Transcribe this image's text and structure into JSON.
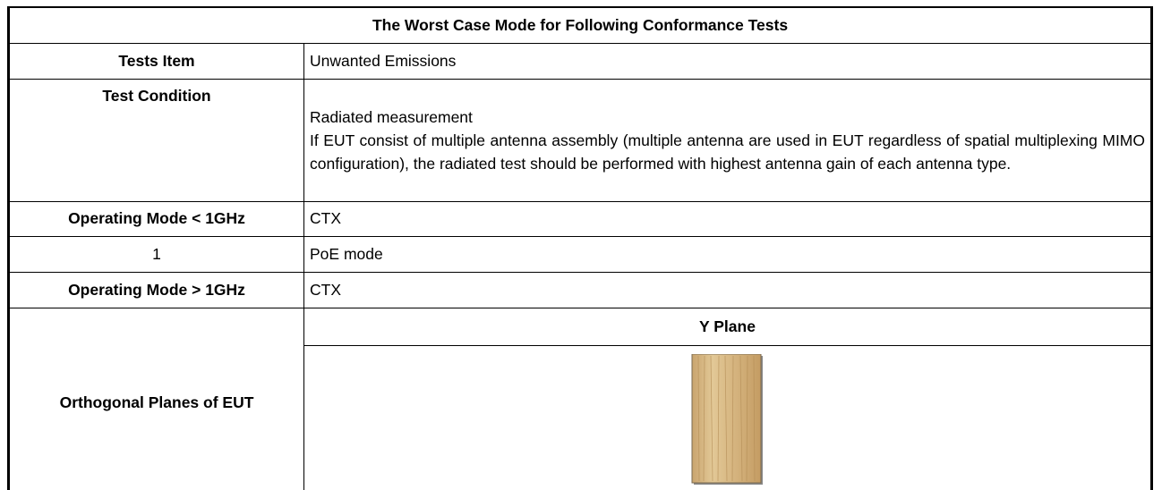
{
  "table": {
    "title": "The Worst Case Mode for Following Conformance Tests",
    "rows": [
      {
        "label": "Tests Item",
        "value": "Unwanted Emissions"
      },
      {
        "label": "Test Condition",
        "value": [
          "Radiated measurement",
          "If EUT consist of multiple antenna assembly (multiple antenna are used in EUT regardless of spatial multiplexing MIMO configuration), the radiated test should be performed with highest antenna gain of each antenna type."
        ]
      },
      {
        "label": "Operating Mode < 1GHz",
        "value": "CTX"
      },
      {
        "label": "1",
        "value": "PoE mode"
      },
      {
        "label": "Operating Mode > 1GHz",
        "value": "CTX"
      }
    ],
    "planes": {
      "label": "Orthogonal Planes of EUT",
      "plane": "Y Plane"
    }
  }
}
